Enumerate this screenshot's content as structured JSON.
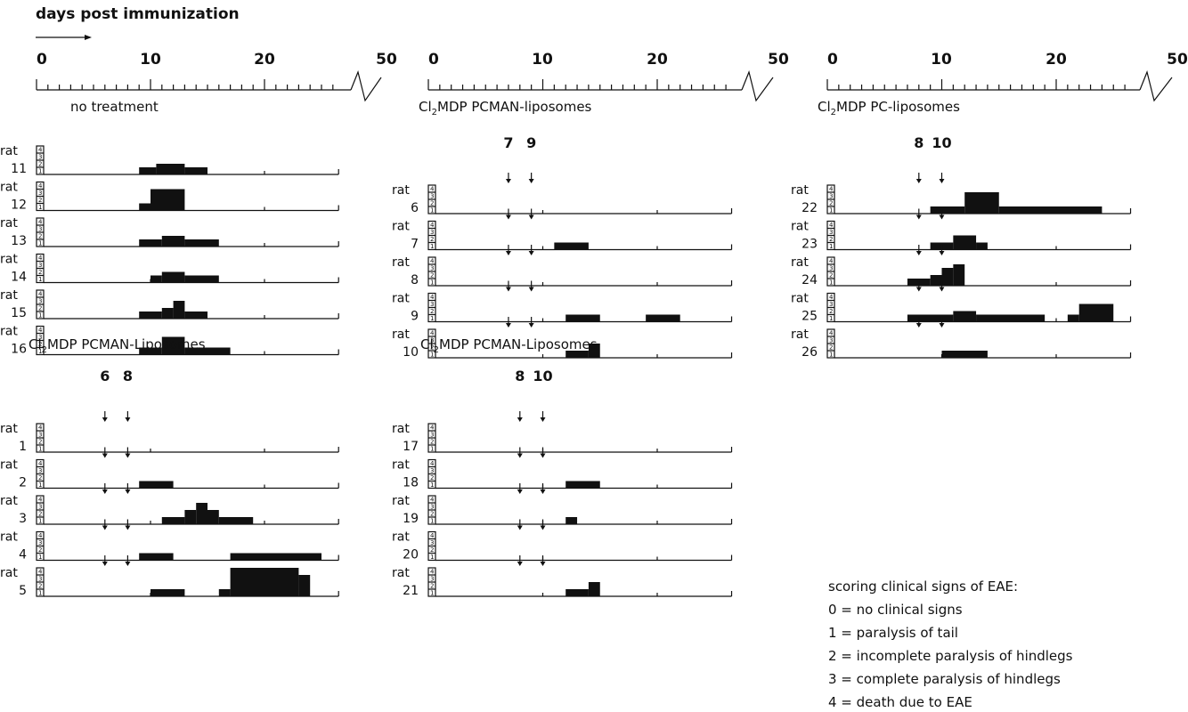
{
  "header": "days post immunization",
  "score_ticks": [
    "4",
    "3",
    "2",
    "1"
  ],
  "rat_prefix": "rat",
  "colors": {
    "ink": "#111111",
    "background": "#ffffff"
  },
  "legend": {
    "title": "scoring clinical signs of EAE:",
    "items": [
      "0 = no clinical signs",
      "1 = paralysis of tail",
      "2 = incomplete paralysis of hindlegs",
      "3 = complete paralysis of hindlegs",
      "4 = death due to EAE"
    ]
  },
  "chart_data": [
    {
      "type": "area",
      "column": 1,
      "title": "no treatment",
      "x_tick_labels": [
        "0",
        "10",
        "20",
        "50"
      ],
      "xlim": [
        0,
        50
      ],
      "axis_break": true,
      "ylim": [
        0,
        4
      ],
      "injection_days": [],
      "series": [
        {
          "name": "11",
          "segments": [
            {
              "start": 9,
              "end": 10.5,
              "score": 1
            },
            {
              "start": 10.5,
              "end": 13,
              "score": 1.5
            },
            {
              "start": 13,
              "end": 15,
              "score": 1
            }
          ]
        },
        {
          "name": "12",
          "segments": [
            {
              "start": 9,
              "end": 10,
              "score": 1
            },
            {
              "start": 10,
              "end": 13,
              "score": 3
            }
          ]
        },
        {
          "name": "13",
          "segments": [
            {
              "start": 9,
              "end": 11,
              "score": 1
            },
            {
              "start": 11,
              "end": 13,
              "score": 1.5
            },
            {
              "start": 13,
              "end": 16,
              "score": 1
            }
          ]
        },
        {
          "name": "14",
          "segments": [
            {
              "start": 10,
              "end": 11,
              "score": 1
            },
            {
              "start": 11,
              "end": 13,
              "score": 1.5
            },
            {
              "start": 13,
              "end": 16,
              "score": 1
            }
          ]
        },
        {
          "name": "15",
          "segments": [
            {
              "start": 9,
              "end": 11,
              "score": 1
            },
            {
              "start": 11,
              "end": 12,
              "score": 1.5
            },
            {
              "start": 12,
              "end": 13,
              "score": 2.5
            },
            {
              "start": 13,
              "end": 15,
              "score": 1
            }
          ]
        },
        {
          "name": "16",
          "segments": [
            {
              "start": 9,
              "end": 11,
              "score": 1
            },
            {
              "start": 11,
              "end": 13,
              "score": 2.5
            },
            {
              "start": 13,
              "end": 17,
              "score": 1
            }
          ]
        }
      ]
    },
    {
      "type": "area",
      "column": 1,
      "title": "Cl2MDP PCMAN-Liposomes",
      "injection_days": [
        6,
        8
      ],
      "xlim": [
        0,
        50
      ],
      "ylim": [
        0,
        4
      ],
      "series": [
        {
          "name": "1",
          "segments": []
        },
        {
          "name": "2",
          "segments": [
            {
              "start": 9,
              "end": 12,
              "score": 1
            }
          ]
        },
        {
          "name": "3",
          "segments": [
            {
              "start": 11,
              "end": 13,
              "score": 1
            },
            {
              "start": 13,
              "end": 14,
              "score": 2
            },
            {
              "start": 14,
              "end": 15,
              "score": 3
            },
            {
              "start": 15,
              "end": 16,
              "score": 2
            },
            {
              "start": 16,
              "end": 19,
              "score": 1
            }
          ]
        },
        {
          "name": "4",
          "segments": [
            {
              "start": 9,
              "end": 12,
              "score": 1
            },
            {
              "start": 17,
              "end": 25,
              "score": 1
            }
          ]
        },
        {
          "name": "5",
          "segments": [
            {
              "start": 10,
              "end": 13,
              "score": 1
            },
            {
              "start": 16,
              "end": 17,
              "score": 1
            },
            {
              "start": 17,
              "end": 23,
              "score": 4
            },
            {
              "start": 23,
              "end": 24,
              "score": 3
            }
          ]
        }
      ]
    },
    {
      "type": "area",
      "column": 2,
      "title": "Cl2MDP PCMAN-liposomes",
      "x_tick_labels": [
        "0",
        "10",
        "20",
        "50"
      ],
      "xlim": [
        0,
        50
      ],
      "axis_break": true,
      "ylim": [
        0,
        4
      ],
      "injection_days": [
        7,
        9
      ],
      "series": [
        {
          "name": "6",
          "segments": []
        },
        {
          "name": "7",
          "segments": [
            {
              "start": 11,
              "end": 14,
              "score": 1
            }
          ]
        },
        {
          "name": "8",
          "segments": []
        },
        {
          "name": "9",
          "segments": [
            {
              "start": 12,
              "end": 15,
              "score": 1
            },
            {
              "start": 19,
              "end": 22,
              "score": 1
            }
          ]
        },
        {
          "name": "10",
          "segments": [
            {
              "start": 12,
              "end": 14,
              "score": 1
            },
            {
              "start": 14,
              "end": 15,
              "score": 2
            }
          ]
        }
      ]
    },
    {
      "type": "area",
      "column": 2,
      "title": "Cl2MDP PCMAN-Liposomes",
      "injection_days": [
        8,
        10
      ],
      "xlim": [
        0,
        50
      ],
      "ylim": [
        0,
        4
      ],
      "series": [
        {
          "name": "17",
          "segments": []
        },
        {
          "name": "18",
          "segments": [
            {
              "start": 12,
              "end": 15,
              "score": 1
            }
          ]
        },
        {
          "name": "19",
          "segments": [
            {
              "start": 12,
              "end": 13,
              "score": 1
            }
          ]
        },
        {
          "name": "20",
          "segments": []
        },
        {
          "name": "21",
          "segments": [
            {
              "start": 12,
              "end": 14,
              "score": 1
            },
            {
              "start": 14,
              "end": 15,
              "score": 2
            }
          ]
        }
      ]
    },
    {
      "type": "area",
      "column": 3,
      "title": "Cl2MDP PC-liposomes",
      "x_tick_labels": [
        "0",
        "10",
        "20",
        "50"
      ],
      "xlim": [
        0,
        50
      ],
      "axis_break": true,
      "ylim": [
        0,
        4
      ],
      "injection_days": [
        8,
        10
      ],
      "series": [
        {
          "name": "22",
          "segments": [
            {
              "start": 9,
              "end": 12,
              "score": 1
            },
            {
              "start": 12,
              "end": 15,
              "score": 3
            },
            {
              "start": 15,
              "end": 24,
              "score": 1
            }
          ]
        },
        {
          "name": "23",
          "segments": [
            {
              "start": 9,
              "end": 11,
              "score": 1
            },
            {
              "start": 11,
              "end": 13,
              "score": 2
            },
            {
              "start": 13,
              "end": 14,
              "score": 1
            }
          ]
        },
        {
          "name": "24",
          "segments": [
            {
              "start": 7,
              "end": 9,
              "score": 1
            },
            {
              "start": 9,
              "end": 10,
              "score": 1.5
            },
            {
              "start": 10,
              "end": 11,
              "score": 2.5
            },
            {
              "start": 11,
              "end": 12,
              "score": 3
            }
          ]
        },
        {
          "name": "25",
          "segments": [
            {
              "start": 7,
              "end": 11,
              "score": 1
            },
            {
              "start": 11,
              "end": 13,
              "score": 1.5
            },
            {
              "start": 13,
              "end": 19,
              "score": 1
            },
            {
              "start": 21,
              "end": 22,
              "score": 1
            },
            {
              "start": 22,
              "end": 25,
              "score": 2.5
            }
          ]
        },
        {
          "name": "26",
          "segments": [
            {
              "start": 10,
              "end": 14,
              "score": 1
            }
          ]
        }
      ]
    }
  ]
}
